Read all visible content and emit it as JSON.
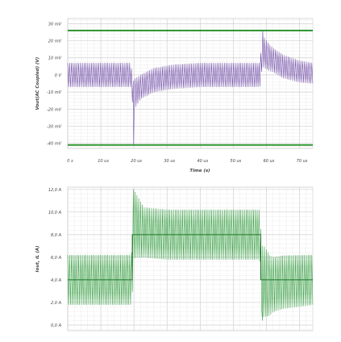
{
  "chart_data": [
    {
      "type": "line",
      "ylabel": "Vout(AC Coupled) (V)",
      "xlabel": "Time (s)",
      "ylim": [
        -43,
        33
      ],
      "xlim": [
        0,
        74
      ],
      "y_ticks": [
        30,
        20,
        10,
        0,
        -10,
        -20,
        -30,
        -40
      ],
      "y_tick_labels": [
        "30 mV",
        "20 mV",
        "10 mV",
        "0 V",
        "-10 mV",
        "-20 mV",
        "-30 mV",
        "-40 mV"
      ],
      "x_ticks": [
        0,
        10,
        20,
        30,
        40,
        50,
        60,
        70
      ],
      "x_tick_labels": [
        "0 s",
        "10 us",
        "20 us",
        "30 us",
        "40 us",
        "50 us",
        "60 us",
        "70 us"
      ],
      "grid": true,
      "limit_lines": [
        {
          "name": "",
          "value": 26,
          "color": "#1e8c1e"
        },
        {
          "name": "",
          "value": -41,
          "color": "#1e8c1e"
        }
      ],
      "series": [
        {
          "name": "",
          "color": "#6f4aa6",
          "kind": "ripple",
          "period": 0.55,
          "baseline": [
            [
              0,
              0
            ],
            [
              19,
              0
            ],
            [
              19.8,
              -12
            ],
            [
              22,
              -7
            ],
            [
              26,
              -3
            ],
            [
              32,
              -1
            ],
            [
              40,
              0
            ],
            [
              58,
              0
            ],
            [
              58.8,
              14
            ],
            [
              61,
              10
            ],
            [
              65,
              5
            ],
            [
              70,
              2
            ],
            [
              74,
              1
            ]
          ],
          "amplitude": [
            [
              0,
              7
            ],
            [
              19,
              7
            ],
            [
              20,
              9
            ],
            [
              22,
              7
            ],
            [
              58,
              7
            ],
            [
              59,
              9
            ],
            [
              62,
              7
            ],
            [
              74,
              6
            ]
          ],
          "spikes": [
            [
              19.9,
              -41
            ],
            [
              58.9,
              26
            ]
          ]
        }
      ]
    },
    {
      "type": "line",
      "ylabel": "Iout, iL (A)",
      "xlabel": "",
      "ylim": [
        -0.5,
        12.2
      ],
      "xlim": [
        0,
        74
      ],
      "y_ticks": [
        12,
        10,
        8,
        6,
        4,
        2,
        0
      ],
      "y_tick_labels": [
        "12,0 A",
        "10,0 A",
        "8,0 A",
        "6,0 A",
        "4,0 A",
        "2,0 A",
        "0,0 A"
      ],
      "x_ticks": [
        0,
        10,
        20,
        30,
        40,
        50,
        60,
        70
      ],
      "x_tick_labels": [],
      "grid": true,
      "series": [
        {
          "name": "",
          "color": "#2e9a3a",
          "kind": "ripple",
          "period": 0.55,
          "baseline": [
            [
              0,
              4
            ],
            [
              19.4,
              4
            ],
            [
              19.8,
              9
            ],
            [
              23,
              8.2
            ],
            [
              30,
              8
            ],
            [
              58,
              8
            ],
            [
              58.6,
              4
            ],
            [
              61,
              3.5
            ],
            [
              65,
              3.8
            ],
            [
              74,
              4
            ]
          ],
          "amplitude": [
            [
              0,
              2.2
            ],
            [
              19,
              2.2
            ],
            [
              20,
              3
            ],
            [
              23,
              2.2
            ],
            [
              58,
              2.2
            ],
            [
              59,
              3.2
            ],
            [
              62,
              2.4
            ],
            [
              74,
              2.2
            ]
          ],
          "spikes": [
            [
              19.8,
              12
            ],
            [
              58.8,
              0.4
            ]
          ]
        },
        {
          "name": "",
          "color": "#1d7a27",
          "kind": "step",
          "points": [
            [
              0,
              4
            ],
            [
              19.5,
              4
            ],
            [
              19.5,
              8
            ],
            [
              58.3,
              8
            ],
            [
              58.3,
              4
            ],
            [
              74,
              4
            ]
          ]
        }
      ]
    }
  ]
}
